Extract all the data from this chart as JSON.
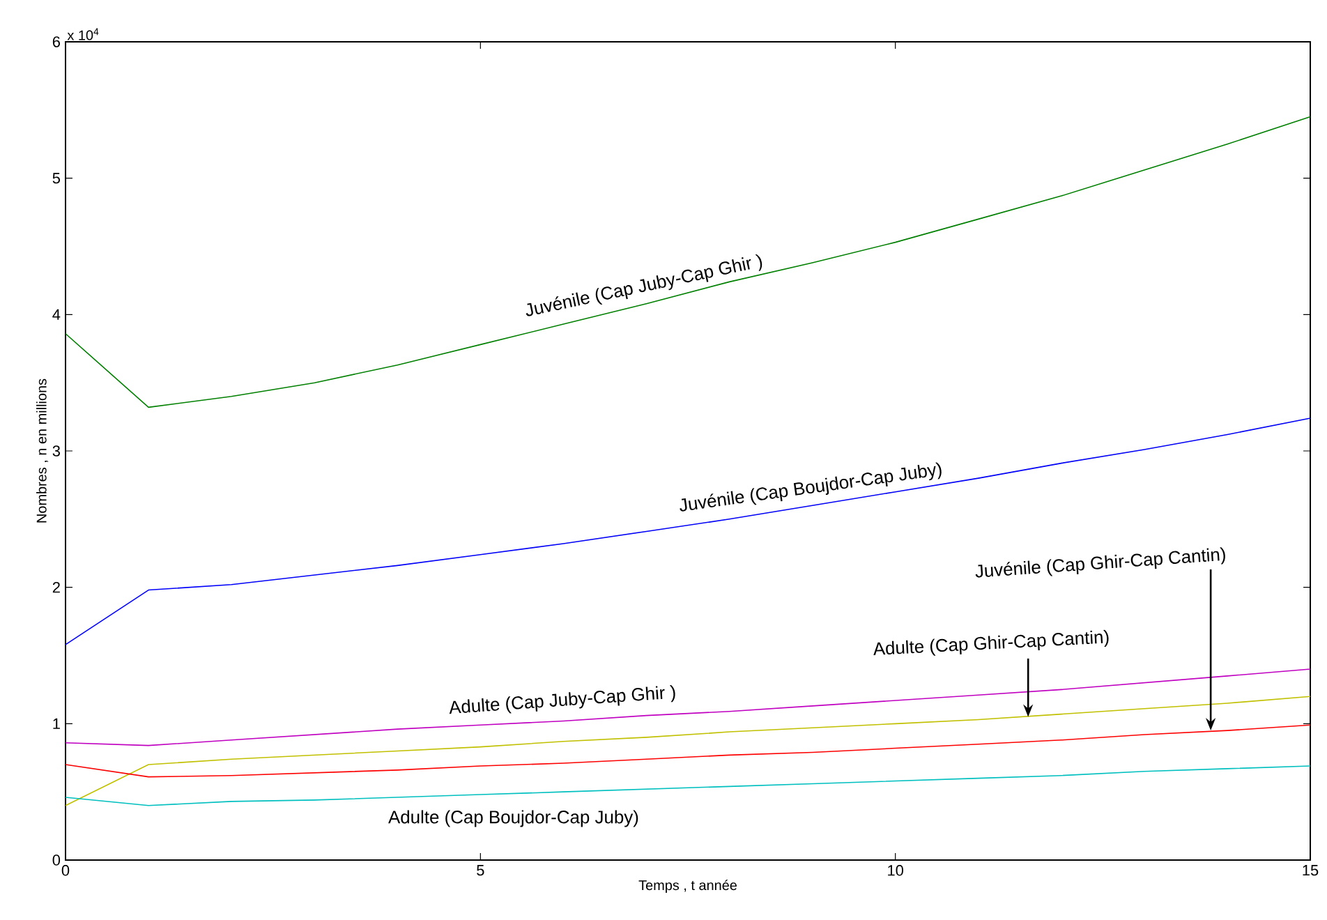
{
  "chart_data": {
    "type": "line",
    "xlabel": "Temps , t année",
    "ylabel": "Nombres , n en millions",
    "x": [
      0,
      1,
      2,
      3,
      4,
      5,
      6,
      7,
      8,
      9,
      10,
      11,
      12,
      13,
      14,
      15
    ],
    "xlim": [
      0,
      15
    ],
    "xticks": [
      0,
      5,
      10,
      15
    ],
    "ylim": [
      0,
      6
    ],
    "yticks": [
      0,
      1,
      2,
      3,
      4,
      5,
      6
    ],
    "series": [
      {
        "color": "#008000",
        "values": [
          3.86,
          3.32,
          3.4,
          3.5,
          3.63,
          3.78,
          3.93,
          4.08,
          4.24,
          4.38,
          4.53,
          4.7,
          4.87,
          5.06,
          5.25,
          5.45
        ]
      },
      {
        "color": "#0000ff",
        "values": [
          1.58,
          1.98,
          2.02,
          2.09,
          2.16,
          2.24,
          2.32,
          2.41,
          2.5,
          2.6,
          2.7,
          2.8,
          2.91,
          3.01,
          3.12,
          3.24
        ]
      },
      {
        "color": "#c000c0",
        "values": [
          0.86,
          0.84,
          0.88,
          0.92,
          0.96,
          0.99,
          1.02,
          1.06,
          1.09,
          1.13,
          1.17,
          1.21,
          1.25,
          1.3,
          1.35,
          1.4
        ]
      },
      {
        "color": "#c0c000",
        "values": [
          0.4,
          0.7,
          0.74,
          0.77,
          0.8,
          0.83,
          0.87,
          0.9,
          0.94,
          0.97,
          1.0,
          1.03,
          1.07,
          1.11,
          1.15,
          1.2
        ]
      },
      {
        "color": "#ff0000",
        "values": [
          0.7,
          0.61,
          0.62,
          0.64,
          0.66,
          0.69,
          0.71,
          0.74,
          0.77,
          0.79,
          0.82,
          0.85,
          0.88,
          0.92,
          0.95,
          0.99
        ]
      },
      {
        "color": "#00bfbf",
        "values": [
          0.46,
          0.4,
          0.43,
          0.44,
          0.46,
          0.48,
          0.5,
          0.52,
          0.54,
          0.56,
          0.58,
          0.6,
          0.62,
          0.65,
          0.67,
          0.69
        ]
      }
    ],
    "annotations": [
      {
        "text": "Juvénile (Cap Juby-Cap Ghir )",
        "x": 7,
        "y": 4.08
      },
      {
        "text": "Juvénile (Cap Boujdor-Cap Juby)",
        "x": 9,
        "y": 2.6
      },
      {
        "text": "Juvénile (Cap Ghir-Cap Cantin)",
        "x": 13.8,
        "y": 0.95
      },
      {
        "text": "Adulte (Cap Ghir-Cap Cantin)",
        "x": 11.6,
        "y": 1.05
      },
      {
        "text": "Adulte (Cap Juby-Cap Ghir )",
        "x": 6,
        "y": 1.02
      },
      {
        "text": "Adulte (Cap Boujdor-Cap Juby)",
        "x": 5.4,
        "y": 0.49
      },
      "x 10$^{4}$"
    ]
  }
}
